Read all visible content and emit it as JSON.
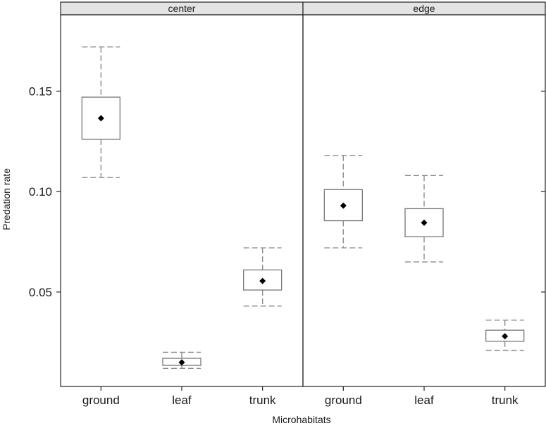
{
  "chart_data": {
    "type": "boxplot",
    "xlabel": "Microhabitats",
    "ylabel": "Predation rate",
    "ylim": [
      0.003,
      0.188
    ],
    "y_ticks": [
      0.05,
      0.1,
      0.15
    ],
    "y_tick_labels": [
      "0.05",
      "0.10",
      "0.15"
    ],
    "categories": [
      "ground",
      "leaf",
      "trunk"
    ],
    "panels": [
      {
        "name": "center",
        "boxes": [
          {
            "category": "ground",
            "whisker_low": 0.107,
            "q1": 0.126,
            "mean": 0.1365,
            "q3": 0.147,
            "whisker_high": 0.172
          },
          {
            "category": "leaf",
            "whisker_low": 0.012,
            "q1": 0.0135,
            "mean": 0.015,
            "q3": 0.017,
            "whisker_high": 0.02
          },
          {
            "category": "trunk",
            "whisker_low": 0.043,
            "q1": 0.051,
            "mean": 0.0555,
            "q3": 0.061,
            "whisker_high": 0.072
          }
        ]
      },
      {
        "name": "edge",
        "boxes": [
          {
            "category": "ground",
            "whisker_low": 0.072,
            "q1": 0.0855,
            "mean": 0.093,
            "q3": 0.101,
            "whisker_high": 0.118
          },
          {
            "category": "leaf",
            "whisker_low": 0.065,
            "q1": 0.0775,
            "mean": 0.0845,
            "q3": 0.0915,
            "whisker_high": 0.108
          },
          {
            "category": "trunk",
            "whisker_low": 0.021,
            "q1": 0.0255,
            "mean": 0.028,
            "q3": 0.031,
            "whisker_high": 0.036
          }
        ]
      }
    ],
    "grid": false,
    "legend": "none",
    "colors": {
      "box_fill": "#ffffff",
      "box_stroke": "#777777",
      "whisker": "#8c8c8c",
      "mean_marker": "#000000",
      "strip_fill": "#e4e4e4",
      "frame": "#222222"
    }
  }
}
